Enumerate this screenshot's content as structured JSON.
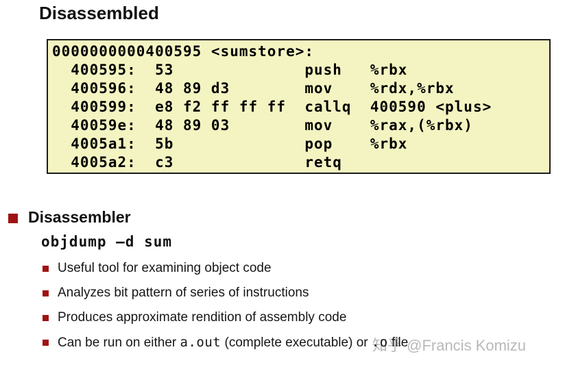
{
  "title": "Disassembled",
  "code_box": {
    "background_color": "#f4f4c2",
    "border_color": "#1c1c1c",
    "lines": [
      "0000000000400595 <sumstore>:",
      "  400595:  53              push   %rbx",
      "  400596:  48 89 d3        mov    %rdx,%rbx",
      "  400599:  e8 f2 ff ff ff  callq  400590 <plus>",
      "  40059e:  48 89 03        mov    %rax,(%rbx)",
      "  4005a1:  5b              pop    %rbx",
      "  4005a2:  c3              retq"
    ]
  },
  "section": {
    "heading": "Disassembler",
    "command": "objdump –d sum",
    "bullet_color": "#a01212",
    "bullets": [
      {
        "text": "Useful tool for examining object code"
      },
      {
        "text": "Analyzes bit pattern of series of instructions"
      },
      {
        "text": "Produces approximate rendition of assembly code"
      },
      {
        "segments": [
          {
            "text": "Can be run on either ",
            "mono": false
          },
          {
            "text": "a.out",
            "mono": true
          },
          {
            "text": " (complete executable) or ",
            "mono": false
          },
          {
            "text": ".o",
            "mono": true
          },
          {
            "text": " file",
            "mono": false
          }
        ]
      }
    ]
  },
  "watermark": {
    "text": "知乎 @Francis Komizu",
    "color": "#b9b9b9"
  }
}
